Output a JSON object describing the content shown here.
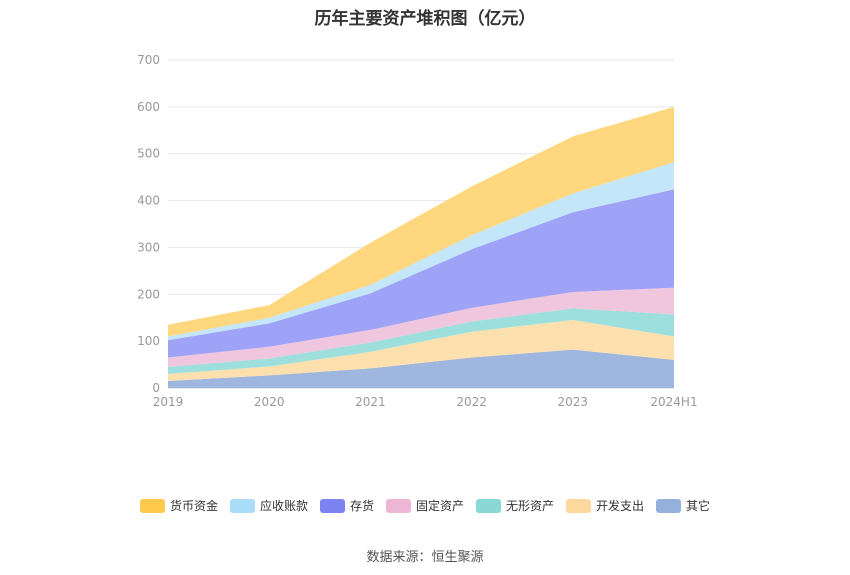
{
  "chart_data": {
    "type": "area",
    "stacked": true,
    "title": "历年主要资产堆积图（亿元）",
    "categories": [
      "2019",
      "2020",
      "2021",
      "2022",
      "2023",
      "2024H1"
    ],
    "ylim": [
      0,
      700
    ],
    "yticks": [
      0,
      100,
      200,
      300,
      400,
      500,
      600,
      700
    ],
    "grid": true,
    "legend_position": "bottom",
    "series": [
      {
        "name": "其它",
        "color": "#9fb6de",
        "values": [
          15,
          27,
          42,
          65,
          82,
          60
        ]
      },
      {
        "name": "开发支出",
        "color": "#fde0ad",
        "values": [
          15,
          19,
          35,
          55,
          63,
          50
        ]
      },
      {
        "name": "无形资产",
        "color": "#9ddfdc",
        "values": [
          15,
          17,
          20,
          22,
          25,
          47
        ]
      },
      {
        "name": "固定资产",
        "color": "#f0c6df",
        "values": [
          20,
          25,
          27,
          29,
          35,
          57
        ]
      },
      {
        "name": "存货",
        "color": "#9fa3f7",
        "values": [
          37,
          50,
          78,
          125,
          170,
          210
        ]
      },
      {
        "name": "应收账款",
        "color": "#c3e6f9",
        "values": [
          8,
          12,
          18,
          30,
          40,
          58
        ]
      },
      {
        "name": "货币资金",
        "color": "#ffd77f",
        "values": [
          25,
          27,
          90,
          104,
          122,
          118
        ]
      }
    ],
    "legend": [
      {
        "name": "货币资金",
        "color": "#ffc94d"
      },
      {
        "name": "应收账款",
        "color": "#a8dcf7"
      },
      {
        "name": "存货",
        "color": "#7b82f2"
      },
      {
        "name": "固定资产",
        "color": "#edb5d6"
      },
      {
        "name": "无形资产",
        "color": "#8ad8d6"
      },
      {
        "name": "开发支出",
        "color": "#fdd9a0"
      },
      {
        "name": "其它",
        "color": "#94b0dc"
      }
    ]
  },
  "source_text": "数据来源：恒生聚源"
}
